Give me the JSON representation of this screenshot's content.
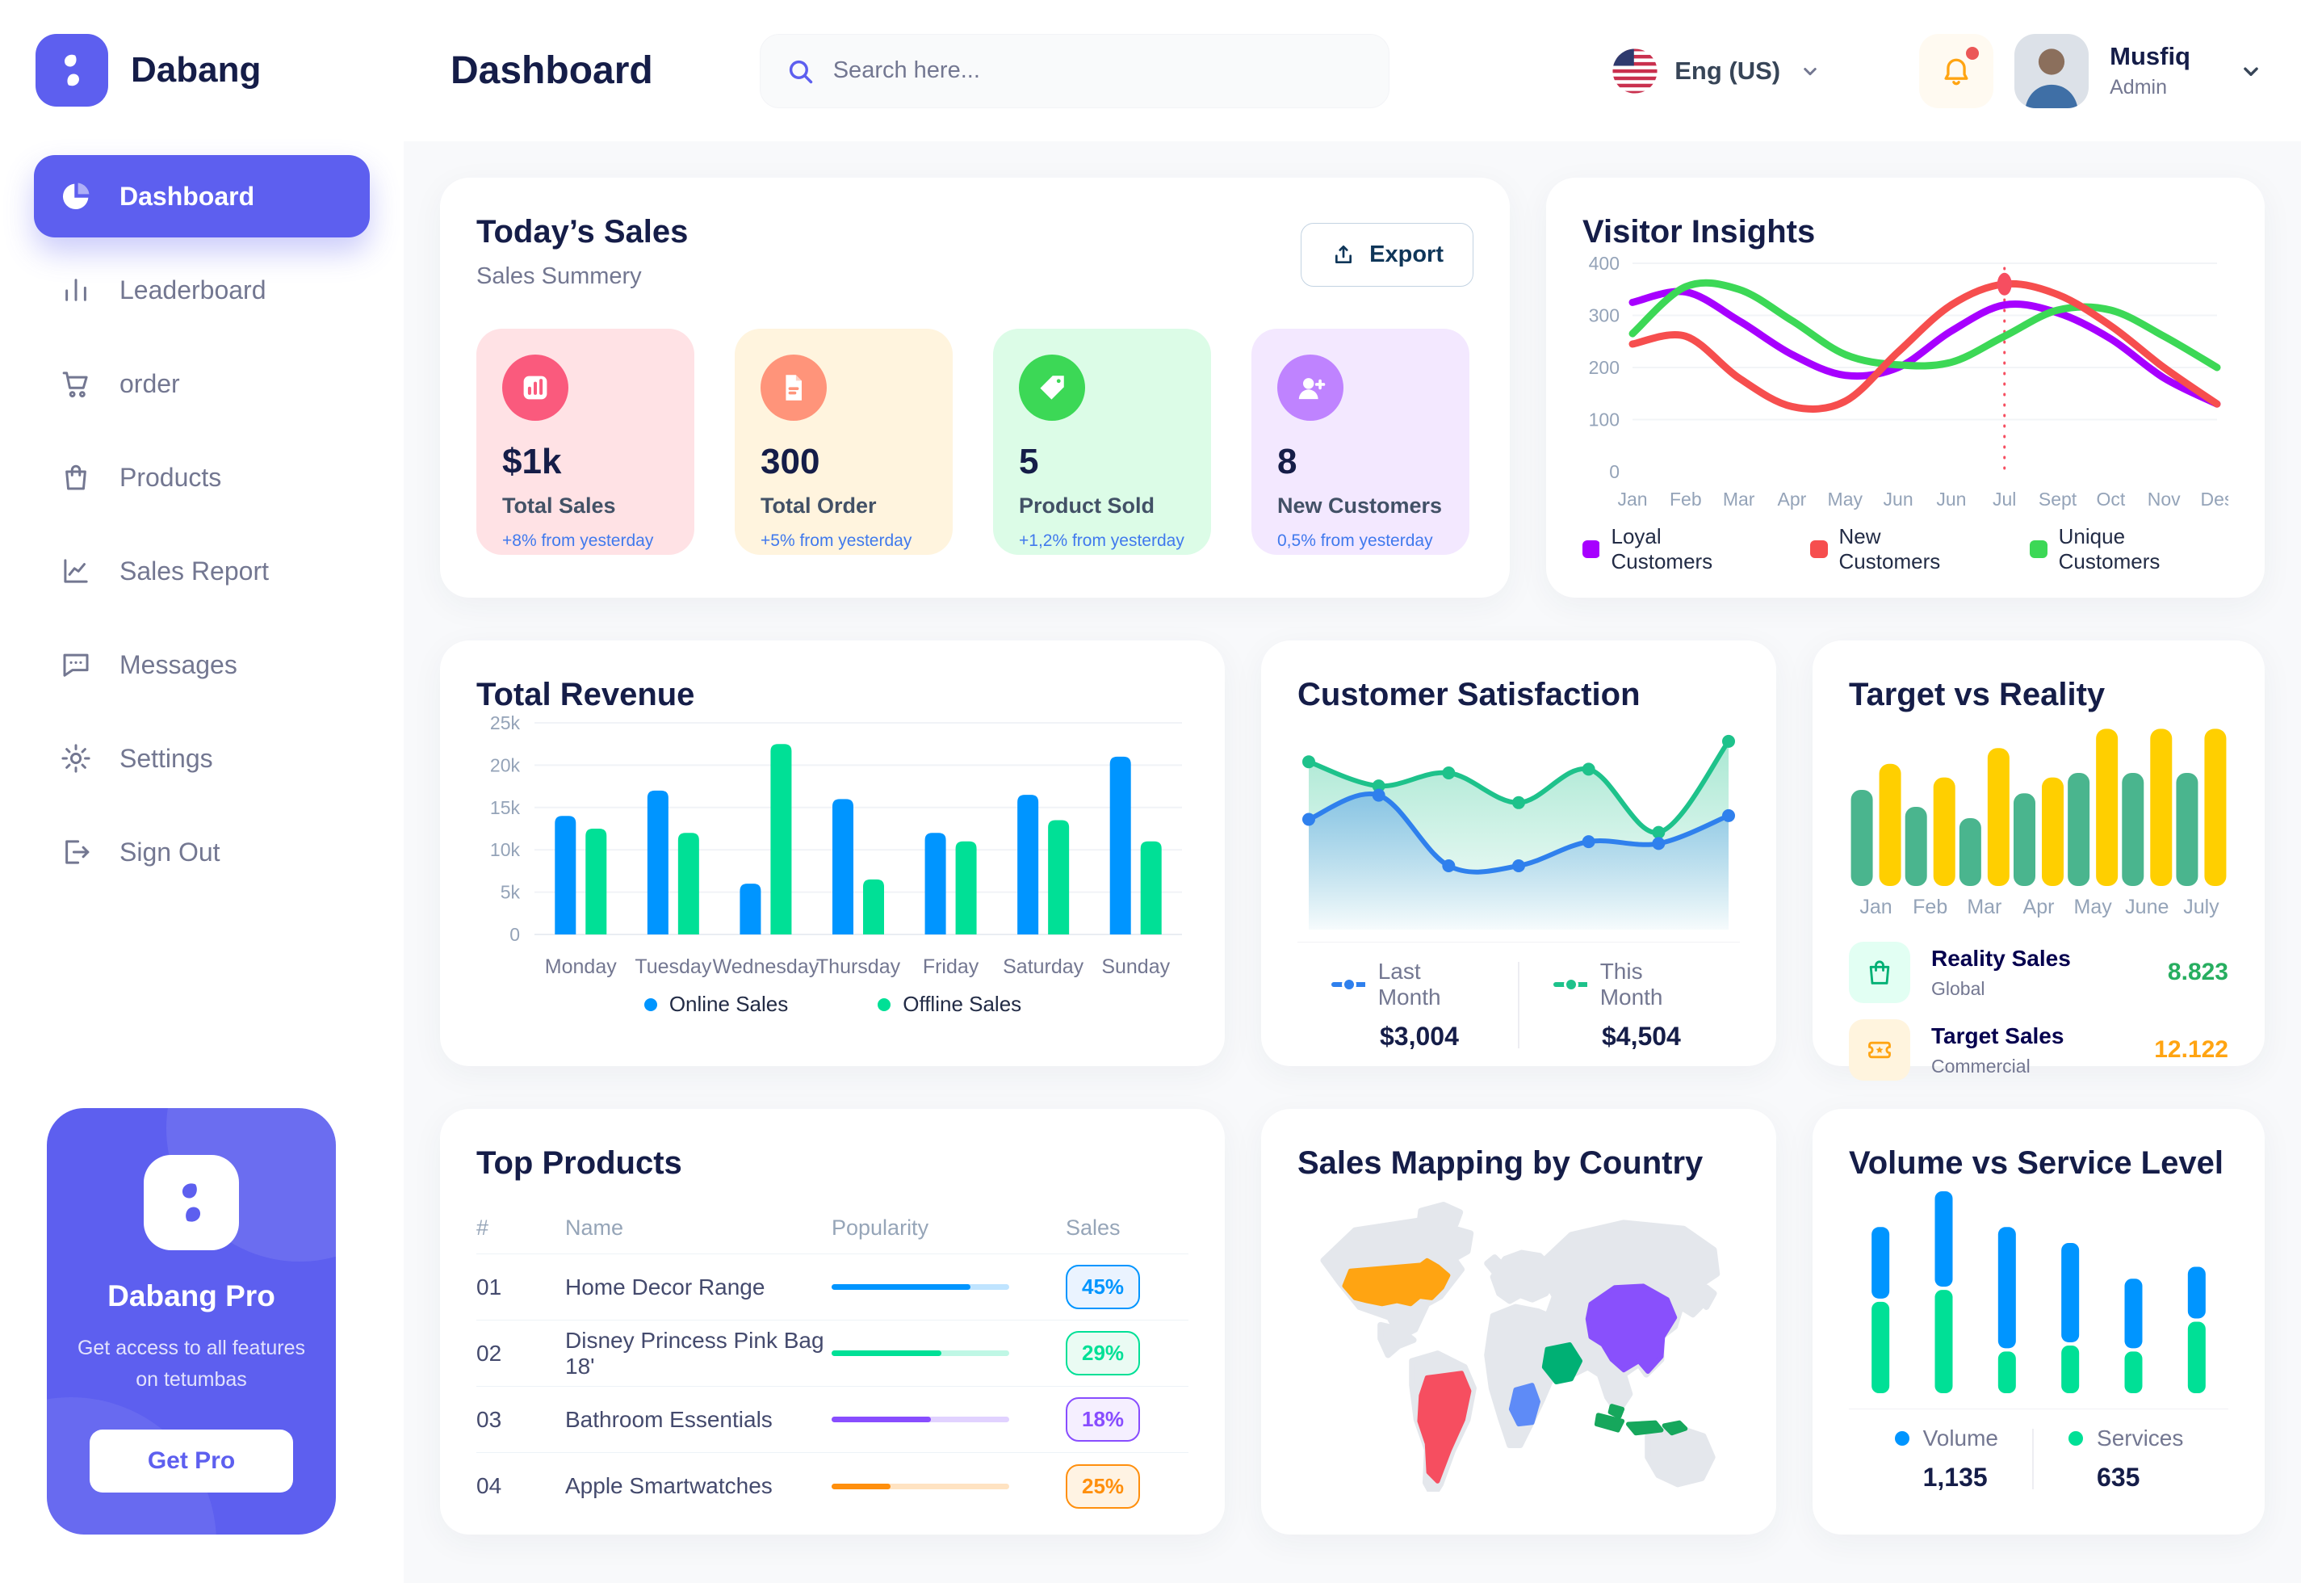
{
  "brand": {
    "name": "Dabang"
  },
  "header": {
    "title": "Dashboard",
    "search_placeholder": "Search here...",
    "language": "Eng (US)",
    "user": {
      "name": "Musfiq",
      "role": "Admin"
    }
  },
  "sidebar": {
    "items": [
      {
        "id": "dashboard",
        "label": "Dashboard",
        "icon": "pie",
        "active": true
      },
      {
        "id": "leaderboard",
        "label": "Leaderboard",
        "icon": "bars",
        "active": false
      },
      {
        "id": "order",
        "label": "order",
        "icon": "cart",
        "active": false
      },
      {
        "id": "products",
        "label": "Products",
        "icon": "bag",
        "active": false
      },
      {
        "id": "sales-report",
        "label": "Sales Report",
        "icon": "chartline",
        "active": false
      },
      {
        "id": "messages",
        "label": "Messages",
        "icon": "chat",
        "active": false
      },
      {
        "id": "settings",
        "label": "Settings",
        "icon": "gear",
        "active": false
      },
      {
        "id": "sign-out",
        "label": "Sign Out",
        "icon": "signout",
        "active": false
      }
    ],
    "pro": {
      "title": "Dabang Pro",
      "subtitle": "Get access to all features on tetumbas",
      "button": "Get Pro"
    }
  },
  "todays_sales": {
    "title": "Today’s Sales",
    "subtitle": "Sales Summery",
    "export_label": "Export",
    "delta_color": "#4079ED",
    "cards": [
      {
        "value": "$1k",
        "label": "Total Sales",
        "delta": "+8% from yesterday",
        "bg": "#FFE2E5",
        "icon_bg": "#FA5A7D",
        "icon": "chart"
      },
      {
        "value": "300",
        "label": "Total Order",
        "delta": "+5% from yesterday",
        "bg": "#FFF4DE",
        "icon_bg": "#FF947A",
        "icon": "file"
      },
      {
        "value": "5",
        "label": "Product Sold",
        "delta": "+1,2% from yesterday",
        "bg": "#DCFCE7",
        "icon_bg": "#3CD856",
        "icon": "tag"
      },
      {
        "value": "8",
        "label": "New Customers",
        "delta": "0,5% from yesterday",
        "bg": "#F3E8FF",
        "icon_bg": "#BF83FF",
        "icon": "user"
      }
    ]
  },
  "charts": {
    "visitor_insights": {
      "title": "Visitor Insights",
      "type": "line",
      "x": [
        "Jan",
        "Feb",
        "Mar",
        "Apr",
        "May",
        "Jun",
        "Jun",
        "Jul",
        "Sept",
        "Oct",
        "Nov",
        "Des"
      ],
      "ylim": [
        0,
        400
      ],
      "yticks": [
        0,
        100,
        200,
        300,
        400
      ],
      "highlight": {
        "x_index": 7,
        "value": 360,
        "color": "#F64E60"
      },
      "series": [
        {
          "name": "Loyal Customers",
          "color": "#A700FF",
          "values": [
            325,
            345,
            290,
            225,
            185,
            200,
            270,
            320,
            305,
            255,
            180,
            130
          ]
        },
        {
          "name": "Unique Customers",
          "color": "#3CD856",
          "values": [
            265,
            355,
            350,
            290,
            225,
            205,
            210,
            260,
            310,
            310,
            260,
            200
          ]
        },
        {
          "name": "New Customers",
          "color": "#F64E4E",
          "values": [
            245,
            260,
            180,
            125,
            135,
            230,
            320,
            360,
            340,
            280,
            200,
            130
          ]
        }
      ],
      "legend_order": [
        "Loyal Customers",
        "New Customers",
        "Unique Customers"
      ]
    },
    "total_revenue": {
      "title": "Total Revenue",
      "type": "bar",
      "categories": [
        "Monday",
        "Tuesday",
        "Wednesday",
        "Thursday",
        "Friday",
        "Saturday",
        "Sunday"
      ],
      "ylim": [
        0,
        25000
      ],
      "ytick_labels": [
        "0",
        "5k",
        "10k",
        "15k",
        "20k",
        "25k"
      ],
      "series": [
        {
          "name": "Online Sales",
          "color": "#0095FF",
          "values": [
            14000,
            17000,
            6000,
            16000,
            12000,
            16500,
            21000
          ]
        },
        {
          "name": "Offline Sales",
          "color": "#00E096",
          "values": [
            12500,
            12000,
            22500,
            6500,
            11000,
            13500,
            11000
          ]
        }
      ]
    },
    "customer_satisfaction": {
      "title": "Customer Satisfaction",
      "type": "area",
      "ylim": [
        0,
        100
      ],
      "series": [
        {
          "name": "This Month",
          "color": "#1EC28B",
          "total": "$4,504",
          "values": [
            86,
            73,
            80,
            64,
            82,
            48,
            97
          ]
        },
        {
          "name": "Last Month",
          "color": "#2F80ED",
          "total": "$3,004",
          "values": [
            55,
            68,
            30,
            30,
            43,
            42,
            57
          ]
        }
      ],
      "legend_order": [
        "Last Month",
        "This Month"
      ]
    },
    "target_vs_reality": {
      "title": "Target vs Reality",
      "type": "bar",
      "categories": [
        "Jan",
        "Feb",
        "Mar",
        "Apr",
        "May",
        "June",
        "July"
      ],
      "ylim": [
        0,
        14
      ],
      "series": [
        {
          "name": "Reality Sales",
          "color": "#4AB58E",
          "values": [
            8.5,
            7,
            6,
            8.2,
            10,
            10,
            10
          ]
        },
        {
          "name": "Target Sales",
          "color": "#FFCF00",
          "values": [
            10.8,
            9.6,
            12.2,
            9.6,
            13.9,
            13.9,
            13.9
          ]
        }
      ],
      "legend": [
        {
          "label": "Reality Sales",
          "sublabel": "Global",
          "value": "8.823",
          "value_color": "#27AE60",
          "tile_bg": "#E2FFF3",
          "icon": "bag",
          "icon_color": "#00B074"
        },
        {
          "label": "Target Sales",
          "sublabel": "Commercial",
          "value": "12.122",
          "value_color": "#FFA412",
          "tile_bg": "#FFF4DE",
          "icon": "ticket",
          "icon_color": "#FFA412"
        }
      ]
    },
    "volume_vs_service": {
      "title": "Volume vs Service Level",
      "type": "stacked-bar",
      "series": [
        {
          "name": "Volume",
          "color": "#0095FF",
          "total": "1,135",
          "values": [
            36,
            48,
            61,
            50,
            35,
            26
          ]
        },
        {
          "name": "Services",
          "color": "#00E096",
          "total": "635",
          "values": [
            46,
            52,
            21,
            24,
            21,
            36
          ]
        }
      ]
    }
  },
  "top_products": {
    "title": "Top Products",
    "headers": [
      "#",
      "Name",
      "Popularity",
      "Sales"
    ],
    "rows": [
      {
        "num": "01",
        "name": "Home Decor Range",
        "popularity": 78,
        "sales": "45%",
        "color": "#0095FF",
        "badge_bg": "#EAF3FF"
      },
      {
        "num": "02",
        "name": "Disney Princess Pink Bag 18'",
        "popularity": 62,
        "sales": "29%",
        "color": "#00E096",
        "badge_bg": "#EAFBF3"
      },
      {
        "num": "03",
        "name": "Bathroom Essentials",
        "popularity": 56,
        "sales": "18%",
        "color": "#884DFF",
        "badge_bg": "#F5EFFF"
      },
      {
        "num": "04",
        "name": "Apple Smartwatches",
        "popularity": 33,
        "sales": "25%",
        "color": "#FF8F0D",
        "badge_bg": "#FFF3E3"
      }
    ]
  },
  "sales_mapping": {
    "title": "Sales Mapping by Country",
    "land_color": "#E4E7EC",
    "countries": [
      {
        "id": "usa",
        "name": "United States",
        "color": "#FFA412"
      },
      {
        "id": "brazil",
        "name": "Brazil",
        "color": "#F64E60"
      },
      {
        "id": "saudi-arabia",
        "name": "Saudi Arabia",
        "color": "#00B074"
      },
      {
        "id": "congo",
        "name": "DR Congo",
        "color": "#5E8BF7"
      },
      {
        "id": "china",
        "name": "China",
        "color": "#8950FC"
      },
      {
        "id": "indonesia",
        "name": "Indonesia",
        "color": "#16A75C"
      }
    ]
  }
}
